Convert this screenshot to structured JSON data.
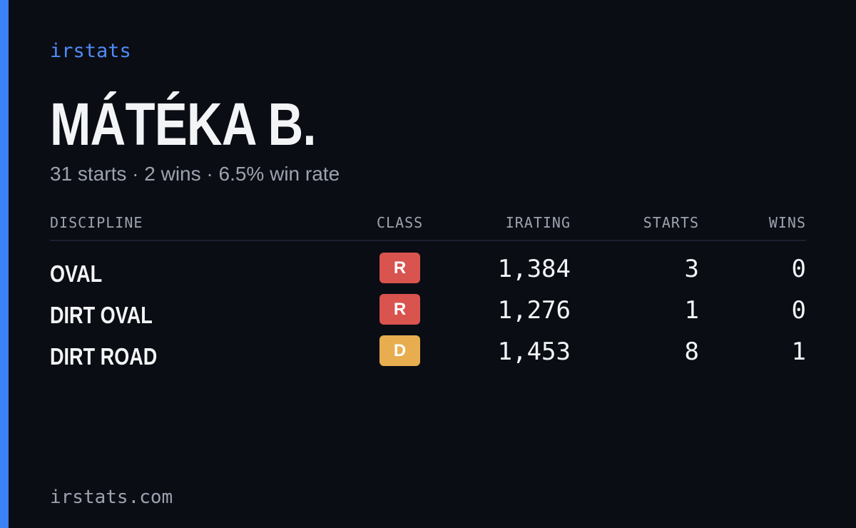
{
  "brand": "irstats",
  "driver": {
    "name": "MÁTÉKA B.",
    "summary": "31 starts · 2 wins · 6.5% win rate"
  },
  "table": {
    "headers": [
      "DISCIPLINE",
      "CLASS",
      "IRATING",
      "STARTS",
      "WINS"
    ],
    "rows": [
      {
        "discipline": "OVAL",
        "class": "R",
        "class_color": "#d9534f",
        "irating": "1,384",
        "starts": "3",
        "wins": "0"
      },
      {
        "discipline": "DIRT OVAL",
        "class": "R",
        "class_color": "#d9534f",
        "irating": "1,276",
        "starts": "1",
        "wins": "0"
      },
      {
        "discipline": "DIRT ROAD",
        "class": "D",
        "class_color": "#e8ad4f",
        "irating": "1,453",
        "starts": "8",
        "wins": "1"
      }
    ]
  },
  "footer": "irstats.com"
}
